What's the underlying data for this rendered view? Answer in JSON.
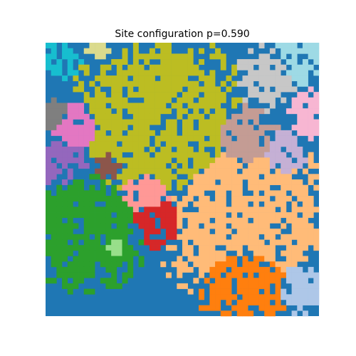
{
  "chart_data": {
    "type": "heatmap",
    "title": "Site configuration p=0.590",
    "xlabel": "",
    "ylabel": "",
    "axes_visible": false,
    "grid": false,
    "legend": "none",
    "grid_size": [
      50,
      50
    ],
    "palette": {
      "background": "#1f77b4",
      "clusters": [
        "#17becf",
        "#dbdb8d",
        "#bcbd22",
        "#9edae5",
        "#c7c7c7",
        "#e377c2",
        "#f7b6d2",
        "#7f7f7f",
        "#c49c94",
        "#9467bd",
        "#c5b0d5",
        "#8c564b",
        "#ff9896",
        "#2ca02c",
        "#d62728",
        "#ffbb78",
        "#98df8a",
        "#ff7f0e",
        "#aec7e8"
      ]
    },
    "clusters": [
      {
        "color": "#17becf",
        "centroid_cell": [
          2,
          2
        ],
        "approx_cells": 25
      },
      {
        "color": "#dbdb8d",
        "centroid_cell": [
          9,
          1
        ],
        "approx_cells": 12
      },
      {
        "color": "#bcbd22",
        "centroid_cell": [
          20,
          14
        ],
        "approx_cells": 420
      },
      {
        "color": "#9edae5",
        "centroid_cell": [
          46,
          3
        ],
        "approx_cells": 40
      },
      {
        "color": "#c7c7c7",
        "centroid_cell": [
          40,
          6
        ],
        "approx_cells": 55
      },
      {
        "color": "#e377c2",
        "centroid_cell": [
          5,
          15
        ],
        "approx_cells": 45
      },
      {
        "color": "#f7b6d2",
        "centroid_cell": [
          48,
          13
        ],
        "approx_cells": 40
      },
      {
        "color": "#7f7f7f",
        "centroid_cell": [
          2,
          13
        ],
        "approx_cells": 15
      },
      {
        "color": "#c49c94",
        "centroid_cell": [
          36,
          17
        ],
        "approx_cells": 60
      },
      {
        "color": "#9467bd",
        "centroid_cell": [
          3,
          21
        ],
        "approx_cells": 40
      },
      {
        "color": "#c5b0d5",
        "centroid_cell": [
          43,
          20
        ],
        "approx_cells": 30
      },
      {
        "color": "#8c564b",
        "centroid_cell": [
          11,
          22
        ],
        "approx_cells": 15
      },
      {
        "color": "#ff9896",
        "centroid_cell": [
          18,
          27
        ],
        "approx_cells": 40
      },
      {
        "color": "#2ca02c",
        "centroid_cell": [
          7,
          34
        ],
        "approx_cells": 200
      },
      {
        "color": "#d62728",
        "centroid_cell": [
          20,
          32
        ],
        "approx_cells": 45
      },
      {
        "color": "#ffbb78",
        "centroid_cell": [
          36,
          32
        ],
        "approx_cells": 420
      },
      {
        "color": "#98df8a",
        "centroid_cell": [
          12,
          37
        ],
        "approx_cells": 12
      },
      {
        "color": "#ff7f0e",
        "centroid_cell": [
          36,
          42
        ],
        "approx_cells": 160
      },
      {
        "color": "#aec7e8",
        "centroid_cell": [
          46,
          44
        ],
        "approx_cells": 40
      }
    ]
  }
}
